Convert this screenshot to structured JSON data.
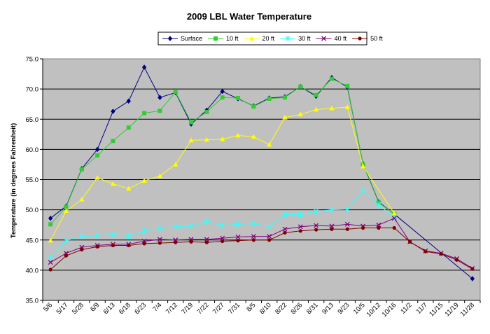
{
  "chart_data": {
    "type": "line",
    "title": "2009 LBL Water Temperature",
    "xlabel": "",
    "ylabel": "Temperature (in degrees Fahrenheit)",
    "ylim": [
      35.0,
      75.0
    ],
    "yticks": [
      "35.0",
      "40.0",
      "45.0",
      "50.0",
      "55.0",
      "60.0",
      "65.0",
      "70.0",
      "75.0"
    ],
    "grid": "horizontal",
    "legend_position": "top",
    "plot_background": "#c0c0c0",
    "categories": [
      "5/6",
      "5/17",
      "5/28",
      "6/9",
      "6/13",
      "6/18",
      "6/23",
      "7/4",
      "7/12",
      "7/19",
      "7/22",
      "7/27",
      "7/31",
      "8/5",
      "8/10",
      "8/22",
      "8/26",
      "8/31",
      "9/13",
      "9/23",
      "10/5",
      "10/12",
      "10/16",
      "11/2",
      "11/7",
      "11/15",
      "11/19",
      "11/28"
    ],
    "series": [
      {
        "name": "Surface",
        "color": "#000080",
        "marker": "diamond",
        "values": [
          48.6,
          50.6,
          56.8,
          60.0,
          66.3,
          68.0,
          73.6,
          68.6,
          69.4,
          64.2,
          66.5,
          69.6,
          68.4,
          67.2,
          68.5,
          68.7,
          70.4,
          68.8,
          71.9,
          70.3,
          57.6,
          51.3,
          49.3,
          null,
          null,
          null,
          null,
          38.6
        ]
      },
      {
        "name": "10 ft",
        "color": "#33cc33",
        "marker": "square",
        "values": [
          47.6,
          50.5,
          56.7,
          59.0,
          61.4,
          63.6,
          66.0,
          66.4,
          69.5,
          64.5,
          66.2,
          68.6,
          68.5,
          67.1,
          68.4,
          68.6,
          70.4,
          69.0,
          71.7,
          70.5,
          57.5,
          51.2,
          49.3,
          null,
          null,
          null,
          null,
          null
        ]
      },
      {
        "name": "20 ft",
        "color": "#ffff00",
        "marker": "triangle",
        "values": [
          44.9,
          49.8,
          51.7,
          55.3,
          54.3,
          53.5,
          54.8,
          55.6,
          57.5,
          61.5,
          61.6,
          61.7,
          62.3,
          62.1,
          60.8,
          65.3,
          65.8,
          66.6,
          66.8,
          67.0,
          57.2,
          null,
          49.4,
          null,
          null,
          null,
          null,
          null
        ]
      },
      {
        "name": "30 ft",
        "color": "#33ffff",
        "marker": "star",
        "values": [
          42.1,
          44.9,
          45.6,
          45.7,
          45.9,
          45.6,
          46.5,
          46.9,
          47.2,
          47.3,
          48.0,
          47.4,
          47.6,
          47.7,
          47.2,
          49.2,
          49.2,
          49.7,
          50.0,
          50.1,
          53.2,
          50.8,
          48.7,
          null,
          null,
          null,
          null,
          null
        ]
      },
      {
        "name": "40 ft",
        "color": "#800080",
        "marker": "x",
        "values": [
          41.3,
          42.8,
          43.8,
          44.1,
          44.3,
          44.3,
          44.8,
          45.1,
          45.0,
          45.1,
          45.1,
          45.3,
          45.5,
          45.6,
          45.6,
          46.8,
          47.2,
          47.4,
          47.3,
          47.6,
          47.3,
          47.5,
          48.6,
          44.7,
          43.2,
          42.8,
          41.9,
          40.3
        ]
      },
      {
        "name": "50 ft",
        "color": "#800000",
        "marker": "circle",
        "values": [
          40.1,
          42.4,
          43.4,
          43.9,
          44.1,
          44.1,
          44.4,
          44.5,
          44.6,
          44.7,
          44.6,
          44.8,
          44.9,
          45.0,
          45.0,
          46.2,
          46.5,
          46.7,
          46.8,
          46.8,
          47.0,
          47.0,
          47.0,
          44.7,
          43.1,
          42.7,
          41.7,
          40.2
        ]
      }
    ]
  }
}
